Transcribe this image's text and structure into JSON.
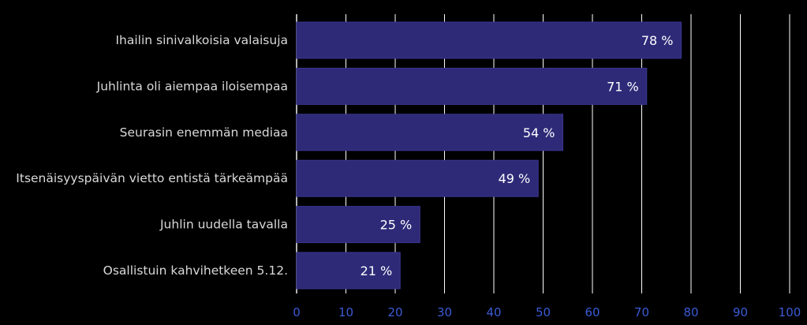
{
  "chart_data": {
    "type": "bar",
    "orientation": "horizontal",
    "categories": [
      "Ihailin sinivalkoisia valaisuja",
      "Juhlinta oli aiempaa iloisempaa",
      "Seurasin enemmän mediaa",
      "Itsenäisyyspäivän vietto entistä tärkeämpää",
      "Juhlin uudella tavalla",
      "Osallistuin kahvihetkeen 5.12."
    ],
    "values": [
      78,
      71,
      54,
      49,
      25,
      21
    ],
    "value_labels": [
      "78 %",
      "71 %",
      "54 %",
      "49 %",
      "25 %",
      "21 %"
    ],
    "title": "",
    "xlabel": "",
    "ylabel": "",
    "xlim": [
      0,
      100
    ],
    "x_ticks": [
      0,
      10,
      20,
      30,
      40,
      50,
      60,
      70,
      80,
      90,
      100
    ],
    "grid": "vertical",
    "legend": "none",
    "colors": {
      "background": "#000000",
      "bar": "#2e2a78",
      "bar_edge": "#3a3690",
      "grid": "#ffffff",
      "category_text": "#d9d9d9",
      "value_text": "#ffffff",
      "tick_text": "#3b5bd6"
    }
  }
}
